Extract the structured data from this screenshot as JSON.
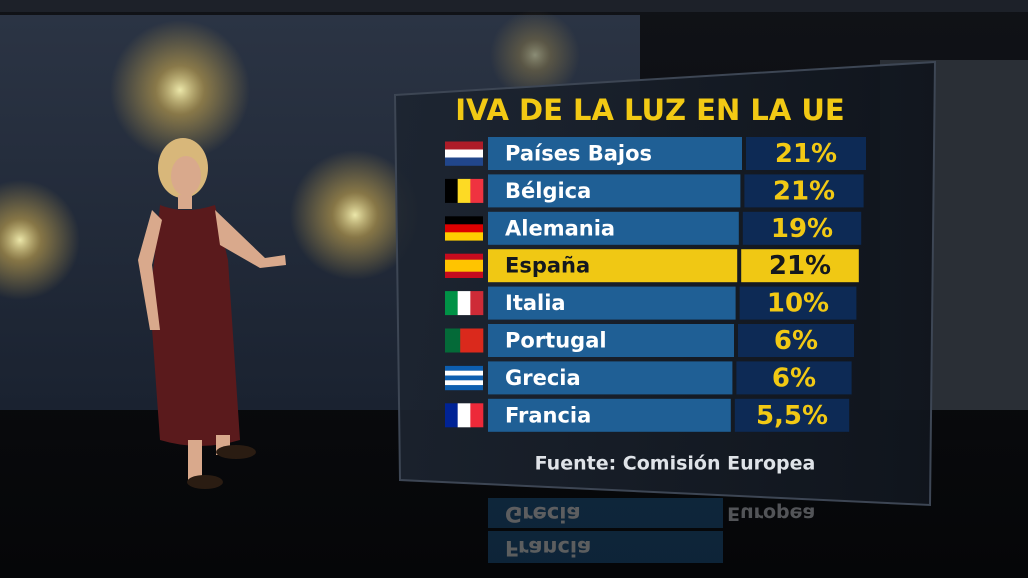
{
  "header": {
    "title": "IVA DE LA LUZ EN LA UE"
  },
  "table": {
    "rows": [
      [
        "Países Bajos",
        "21%"
      ],
      [
        "Bélgica",
        "21%"
      ],
      [
        "Alemania",
        "19%"
      ],
      [
        "España",
        "21%"
      ],
      [
        "Italia",
        "10%"
      ],
      [
        "Portugal",
        "6%"
      ],
      [
        "Grecia",
        "6%"
      ],
      [
        "Francia",
        "5,5%"
      ]
    ]
  },
  "footer": {
    "source": "Fuente: Comisión Europea"
  }
}
